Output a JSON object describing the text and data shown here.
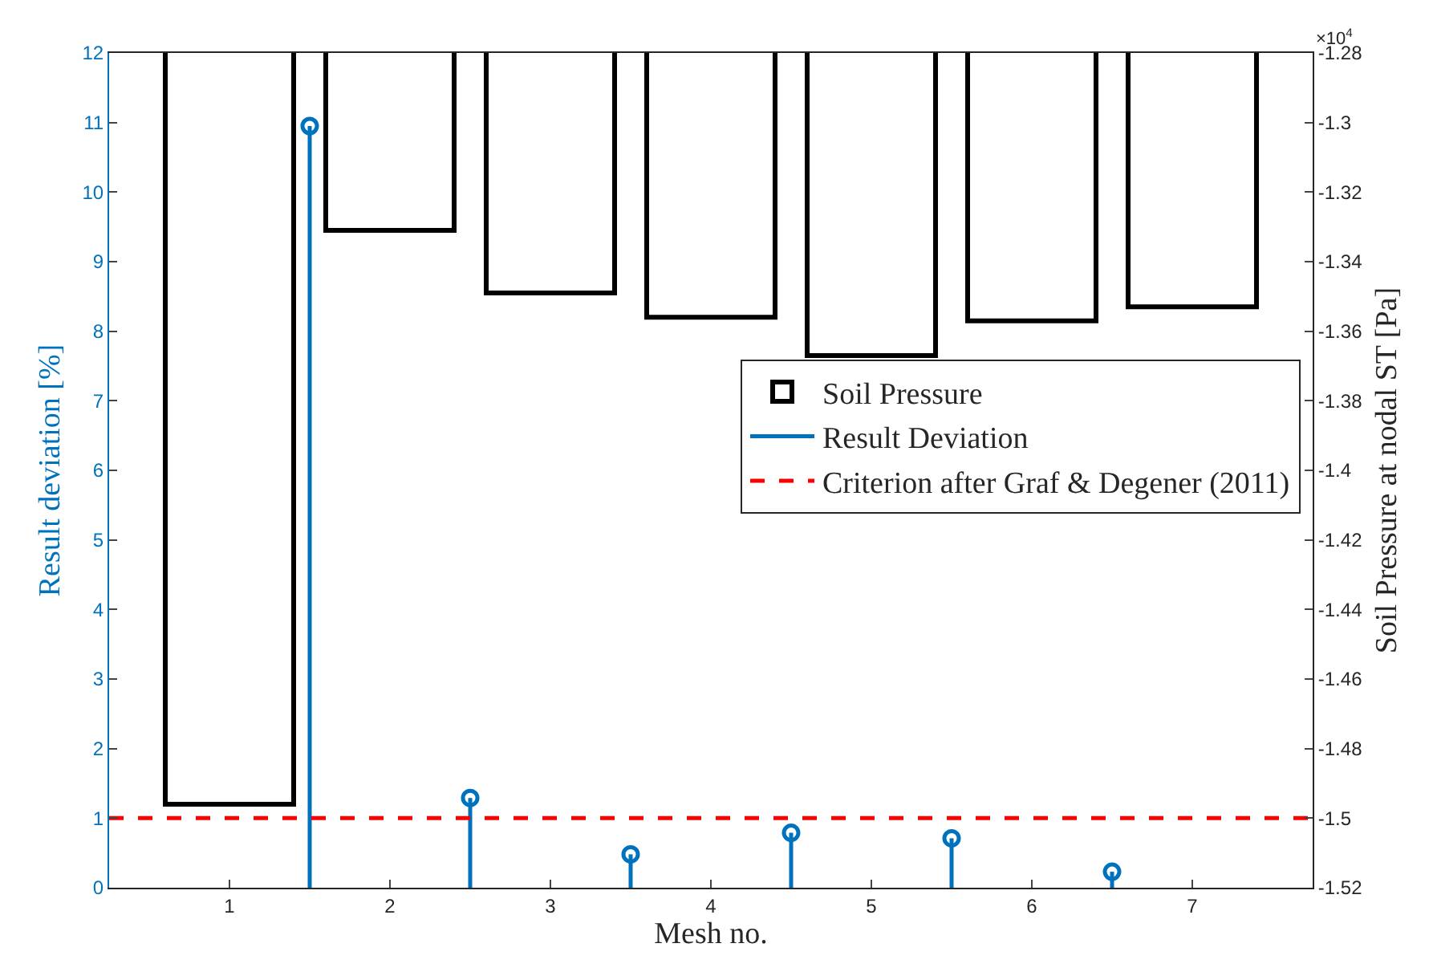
{
  "chart_data": {
    "type": "bar",
    "xlabel": "Mesh no.",
    "ylabel": "Result deviation [%]",
    "y2label": "Soil Pressure at nodal ST [Pa]",
    "series": [
      {
        "name": "Soil Pressure",
        "axis": "y2",
        "color": "#000000",
        "x": [
          1,
          2,
          3,
          4,
          5,
          6,
          7
        ],
        "values": [
          -1.496,
          -1.331,
          -1.349,
          -1.356,
          -1.367,
          -1.357,
          -1.353
        ]
      },
      {
        "name": "Result Deviation",
        "type": "lollipop",
        "color": "#0072bd",
        "x": [
          1.5,
          2.5,
          3.5,
          4.5,
          5.5,
          6.5
        ],
        "values": [
          10.95,
          1.29,
          0.48,
          0.79,
          0.71,
          0.23
        ]
      }
    ],
    "xlim": [
      0.25,
      7.75
    ],
    "xticks": [
      1,
      2,
      3,
      4,
      5,
      6,
      7
    ],
    "ylim": [
      0,
      12
    ],
    "yticks": [
      0,
      1,
      2,
      3,
      4,
      5,
      6,
      7,
      8,
      9,
      10,
      11,
      12
    ],
    "y2lim": [
      -1.52,
      -1.28
    ],
    "y2ticks": [
      -1.52,
      -1.5,
      -1.48,
      -1.46,
      -1.44,
      -1.42,
      -1.4,
      -1.38,
      -1.36,
      -1.34,
      -1.32,
      -1.3,
      -1.28
    ],
    "ref_lines": [
      {
        "axis": "y",
        "value": 1,
        "label": "Criterion after Graf & Degener (2011)",
        "color": "#ff0000",
        "line_style": "dashed"
      }
    ],
    "annotations": [
      "×10$^{4}$"
    ],
    "marker": "circle",
    "legend": "right"
  }
}
